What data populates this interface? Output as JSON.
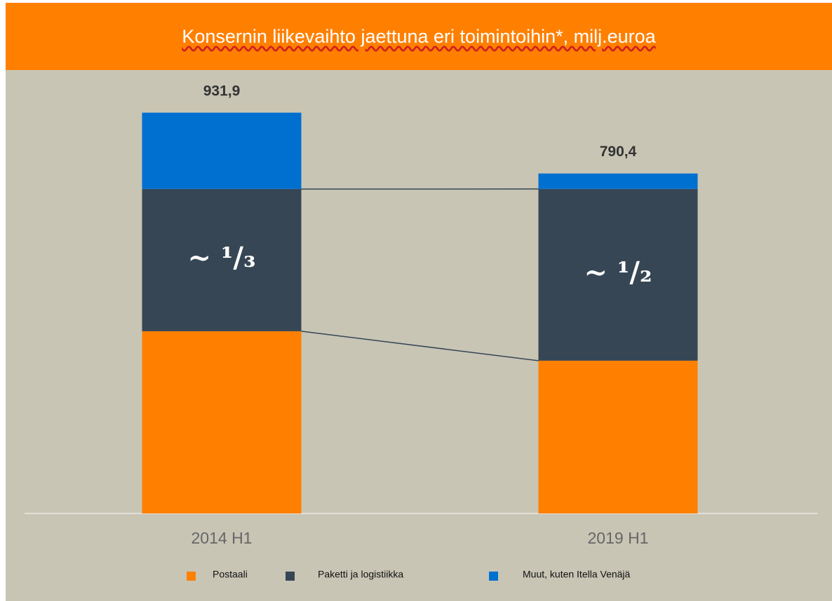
{
  "chart_data": {
    "type": "stacked_bar",
    "title": "Konsernin liikevaihto jaettuna eri toimintoihin*, milj.euroa",
    "categories": [
      "2014 H1",
      "2019 H1"
    ],
    "series": [
      {
        "name": "Postaali",
        "color": "#ff8000",
        "values": [
          423.6,
          355.2
        ]
      },
      {
        "name": "Paketti ja logistiikka",
        "color": "#364654",
        "values": [
          330.7,
          399.2
        ]
      },
      {
        "name": "Muut, kuten Itella Venäjä",
        "color": "#0070d0",
        "values": [
          177.6,
          36.0
        ]
      }
    ],
    "totals": {
      "values": [
        931.9,
        790.4
      ],
      "value_labels": [
        "931,9",
        "790,4"
      ]
    },
    "annotations": [
      "~ ¹/₃",
      "~ ¹/₂"
    ],
    "ylim": [
      0,
      1000
    ],
    "legend": "bottom"
  }
}
